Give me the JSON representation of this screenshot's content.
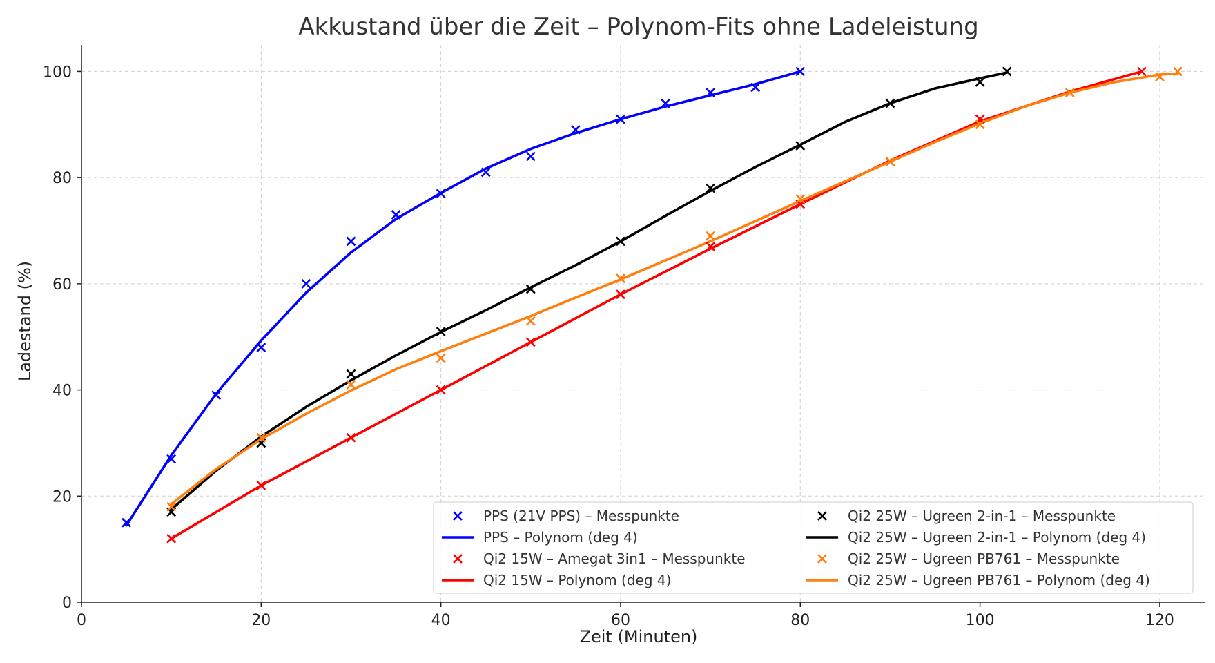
{
  "chart_data": {
    "type": "scatter",
    "title": "Akkustand über die Zeit – Polynom-Fits ohne Ladeleistung",
    "xlabel": "Zeit (Minuten)",
    "ylabel": "Ladestand (%)",
    "xlim": [
      0,
      125
    ],
    "ylim": [
      0,
      105
    ],
    "xticks": [
      0,
      20,
      40,
      60,
      80,
      100,
      120
    ],
    "yticks": [
      0,
      20,
      40,
      60,
      80,
      100
    ],
    "grid": true,
    "legend_position": "bottom-right",
    "series": [
      {
        "name": "PPS (21V PPS) – Messpunkte",
        "fit_name": "PPS – Polynom (deg 4)",
        "color": "#0000ff",
        "x": [
          5,
          10,
          15,
          20,
          25,
          30,
          35,
          40,
          45,
          50,
          55,
          60,
          65,
          70,
          75,
          80
        ],
        "y": [
          15,
          27,
          39,
          48,
          60,
          68,
          73,
          77,
          81,
          84,
          89,
          91,
          94,
          96,
          97,
          100
        ],
        "fit_x": [
          5,
          10,
          15,
          20,
          25,
          30,
          35,
          40,
          45,
          50,
          55,
          60,
          65,
          70,
          75,
          80
        ],
        "fit_y": [
          14.5,
          27.7,
          39.3,
          49.3,
          58.3,
          65.9,
          72.2,
          77.1,
          81.7,
          85.4,
          88.4,
          91.0,
          93.4,
          95.5,
          97.6,
          100.0
        ]
      },
      {
        "name": "Qi2 15W – Amegat 3in1 – Messpunkte",
        "fit_name": "Qi2 15W – Polynom (deg 4)",
        "color": "#ff0000",
        "x": [
          10,
          20,
          30,
          40,
          50,
          60,
          70,
          80,
          90,
          100,
          118
        ],
        "y": [
          12,
          22,
          31,
          40,
          49,
          58,
          67,
          75,
          83,
          91,
          100
        ],
        "fit_x": [
          10,
          20,
          30,
          40,
          50,
          60,
          70,
          80,
          90,
          100,
          110,
          118
        ],
        "fit_y": [
          12.0,
          22.0,
          31.0,
          40.0,
          49.0,
          58.0,
          66.6,
          75.0,
          83.2,
          90.6,
          96.2,
          100.0
        ]
      },
      {
        "name": "Qi2 25W – Ugreen 2-in-1 – Messpunkte",
        "fit_name": "Qi2 25W – Ugreen 2-in-1 – Polynom (deg 4)",
        "color": "#000000",
        "x": [
          10,
          20,
          30,
          40,
          50,
          60,
          70,
          80,
          90,
          100,
          103
        ],
        "y": [
          17,
          30,
          43,
          51,
          59,
          68,
          78,
          86,
          94,
          98,
          100
        ],
        "fit_x": [
          10,
          15,
          20,
          25,
          30,
          35,
          40,
          45,
          50,
          55,
          60,
          65,
          70,
          75,
          80,
          85,
          90,
          95,
          100,
          103
        ],
        "fit_y": [
          17.5,
          24.8,
          31.2,
          36.8,
          41.8,
          46.5,
          50.9,
          55.0,
          59.3,
          63.5,
          68.0,
          72.8,
          77.5,
          82.0,
          86.2,
          90.5,
          94.0,
          96.8,
          98.7,
          99.8
        ]
      },
      {
        "name": "Qi2 25W – Ugreen PB761 – Messpunkte",
        "fit_name": "Qi2 25W – Ugreen PB761 – Polynom (deg 4)",
        "color": "#ff7f0e",
        "x": [
          10,
          20,
          30,
          40,
          50,
          60,
          70,
          80,
          90,
          100,
          110,
          120,
          122
        ],
        "y": [
          18,
          31,
          41,
          46,
          53,
          61,
          69,
          76,
          83,
          90,
          96,
          99,
          100
        ],
        "fit_x": [
          10,
          15,
          20,
          25,
          30,
          35,
          40,
          45,
          50,
          55,
          60,
          65,
          70,
          75,
          80,
          85,
          90,
          95,
          100,
          105,
          110,
          115,
          120,
          122
        ],
        "fit_y": [
          18.5,
          25.1,
          30.7,
          35.5,
          39.9,
          43.9,
          47.3,
          50.6,
          53.9,
          57.4,
          60.8,
          64.4,
          68.0,
          71.8,
          75.6,
          79.3,
          83.0,
          86.7,
          90.2,
          93.4,
          96.0,
          98.0,
          99.4,
          99.6
        ]
      }
    ]
  }
}
